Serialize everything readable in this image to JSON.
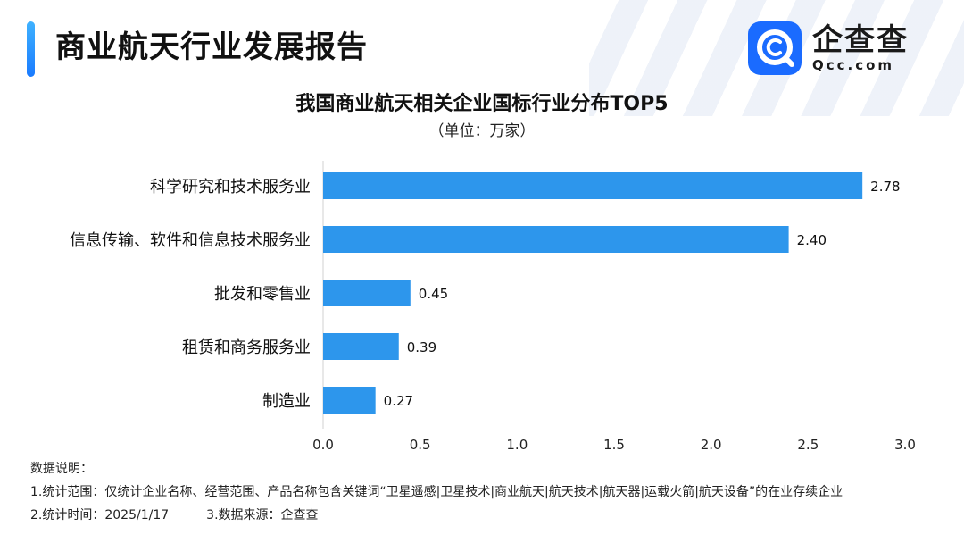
{
  "header": {
    "title": "商业航天行业发展报告"
  },
  "logo": {
    "name": "企查查",
    "domain": "Qcc.com",
    "icon": "qcc-logo-icon",
    "color": "#1a6bff"
  },
  "chart_data": {
    "type": "bar",
    "orientation": "horizontal",
    "title": "我国商业航天相关企业国标行业分布TOP5",
    "subtitle": "（单位：万家）",
    "categories": [
      "科学研究和技术服务业",
      "信息传输、软件和信息技术服务业",
      "批发和零售业",
      "租赁和商务服务业",
      "制造业"
    ],
    "values": [
      2.78,
      2.4,
      0.45,
      0.39,
      0.27
    ],
    "value_labels": [
      "2.78",
      "2.40",
      "0.45",
      "0.39",
      "0.27"
    ],
    "xlim": [
      0,
      3.0
    ],
    "ticks": [
      "0.0",
      "0.5",
      "1.0",
      "1.5",
      "2.0",
      "2.5",
      "3.0"
    ],
    "bar_color": "#2d96ec",
    "grid": false
  },
  "notes": {
    "heading": "数据说明：",
    "scope": "1.统计范围：仅统计企业名称、经营范围、产品名称包含关键词“卫星遥感|卫星技术|商业航天|航天技术|航天器|运载火箭|航天设备”的在业存续企业",
    "time": "2.统计时间：2025/1/17",
    "source": "3.数据来源：企查查"
  }
}
